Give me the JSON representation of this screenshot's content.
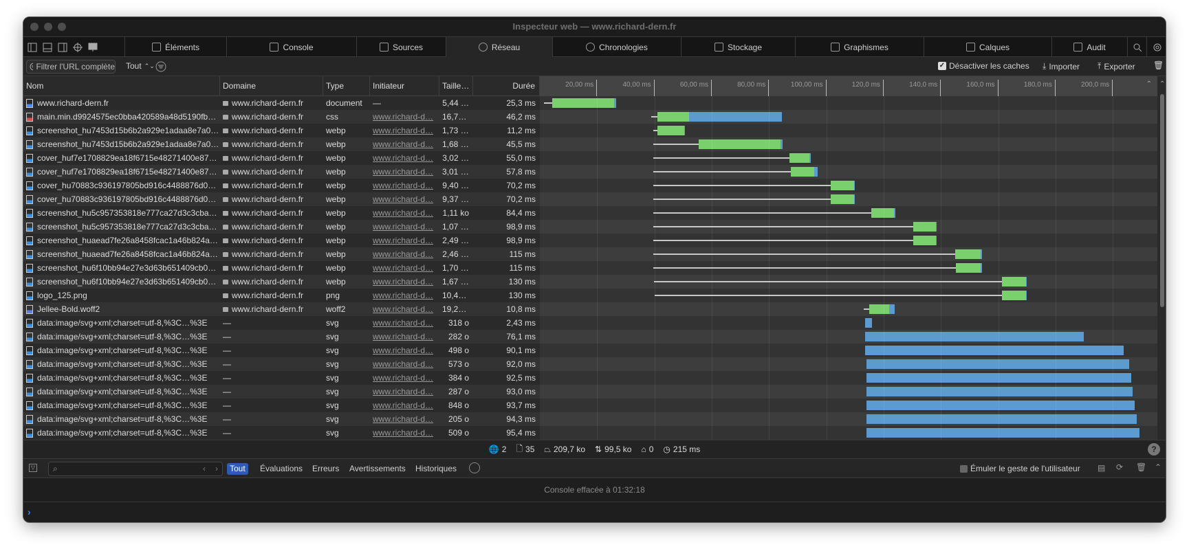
{
  "window": {
    "title": "Inspecteur web — www.richard-dern.fr"
  },
  "tabs": [
    {
      "label": "Éléments",
      "icon": "elements-icon"
    },
    {
      "label": "Console",
      "icon": "console-icon"
    },
    {
      "label": "Sources",
      "icon": "file-icon"
    },
    {
      "label": "Réseau",
      "icon": "network-icon",
      "selected": true
    },
    {
      "label": "Chronologies",
      "icon": "clock-icon"
    },
    {
      "label": "Stockage",
      "icon": "database-icon"
    },
    {
      "label": "Graphismes",
      "icon": "image-icon"
    },
    {
      "label": "Calques",
      "icon": "layers-icon"
    },
    {
      "label": "Audit",
      "icon": "audit-icon"
    }
  ],
  "filterbar": {
    "filter_placeholder": "Filtrer l'URL complète",
    "type_select": "Tout",
    "disable_cache_label": "Désactiver les caches",
    "disable_cache_checked": true,
    "import_label": "Importer",
    "export_label": "Exporter"
  },
  "columns": {
    "name": "Nom",
    "domain": "Domaine",
    "type": "Type",
    "initiator": "Initiateur",
    "size": "Taille…",
    "duration": "Durée"
  },
  "timeline_ticks": [
    "20,00 ms",
    "40,00 ms",
    "60,00 ms",
    "80,00 ms",
    "100,00 ms",
    "120,0 ms",
    "140,0 ms",
    "160,0 ms",
    "180,0 ms",
    "200,0 ms"
  ],
  "colors": {
    "latency": "#7ad06c",
    "download": "#5b9bd0",
    "accent": "#2f5bb5"
  },
  "rows": [
    {
      "name": "www.richard-dern.fr",
      "icon": "document",
      "domain": "www.richard-dern.fr",
      "type": "document",
      "initiator": "—",
      "size": "5,44 …",
      "duration": "25,3 ms",
      "timing": [
        1.4,
        4.3,
        25.9,
        26.6
      ]
    },
    {
      "name": "main.min.d9924575ec0bba420589a48d5190fbca1c…",
      "icon": "css",
      "domain": "www.richard-dern.fr",
      "type": "css",
      "initiator": "www.richard-d…",
      "size": "16,77…",
      "duration": "46,2 ms",
      "timing": [
        38.8,
        41.1,
        52.0,
        84.5
      ]
    },
    {
      "name": "screenshot_hu7453d15b6b2a929e1adaa8e7a06eb6…",
      "icon": "image",
      "domain": "www.richard-dern.fr",
      "type": "webp",
      "initiator": "www.richard-d…",
      "size": "1,73 ko",
      "duration": "11,2 ms",
      "timing": [
        39.6,
        41.1,
        50.3,
        50.7
      ]
    },
    {
      "name": "screenshot_hu7453d15b6b2a929e1adaa8e7a06eb6…",
      "icon": "image",
      "domain": "www.richard-dern.fr",
      "type": "webp",
      "initiator": "www.richard-d…",
      "size": "1,68 ko",
      "duration": "45,5 ms",
      "timing": [
        39.6,
        55.4,
        84.1,
        84.8
      ]
    },
    {
      "name": "cover_huf7e1708829ea18f6715e48271400e87a_21…",
      "icon": "image",
      "domain": "www.richard-dern.fr",
      "type": "webp",
      "initiator": "www.richard-d…",
      "size": "3,02 …",
      "duration": "55,0 ms",
      "timing": [
        39.6,
        87.2,
        94.2,
        94.6
      ]
    },
    {
      "name": "cover_huf7e1708829ea18f6715e48271400e87a_21…",
      "icon": "image",
      "domain": "www.richard-dern.fr",
      "type": "webp",
      "initiator": "www.richard-d…",
      "size": "3,01 ko",
      "duration": "57,8 ms",
      "timing": [
        39.6,
        87.6,
        95.7,
        96.9
      ]
    },
    {
      "name": "cover_hu70883c936197805bd916c4488876d0b0_…",
      "icon": "image",
      "domain": "www.richard-dern.fr",
      "type": "webp",
      "initiator": "www.richard-d…",
      "size": "9,40 …",
      "duration": "70,2 ms",
      "timing": [
        39.6,
        101.5,
        109.6,
        109.9
      ]
    },
    {
      "name": "cover_hu70883c936197805bd916c4488876d0b0_…",
      "icon": "image",
      "domain": "www.richard-dern.fr",
      "type": "webp",
      "initiator": "www.richard-d…",
      "size": "9,37 …",
      "duration": "70,2 ms",
      "timing": [
        39.6,
        101.5,
        109.6,
        109.9
      ]
    },
    {
      "name": "screenshot_hu5c957353818e777ca27d3c3cba003…",
      "icon": "image",
      "domain": "www.richard-dern.fr",
      "type": "webp",
      "initiator": "www.richard-d…",
      "size": "1,11 ko",
      "duration": "84,4 ms",
      "timing": [
        39.6,
        115.6,
        123.7,
        124.1
      ]
    },
    {
      "name": "screenshot_hu5c957353818e777ca27d3c3cba003…",
      "icon": "image",
      "domain": "www.richard-dern.fr",
      "type": "webp",
      "initiator": "www.richard-d…",
      "size": "1,07 ko",
      "duration": "98,9 ms",
      "timing": [
        39.6,
        130.3,
        138.2,
        138.6
      ]
    },
    {
      "name": "screenshot_huaead7fe26a8458fcac1a46b824a981…",
      "icon": "image",
      "domain": "www.richard-dern.fr",
      "type": "webp",
      "initiator": "www.richard-d…",
      "size": "2,49 …",
      "duration": "98,9 ms",
      "timing": [
        39.6,
        130.3,
        138.2,
        138.6
      ]
    },
    {
      "name": "screenshot_huaead7fe26a8458fcac1a46b824a981…",
      "icon": "image",
      "domain": "www.richard-dern.fr",
      "type": "webp",
      "initiator": "www.richard-d…",
      "size": "2,46 …",
      "duration": "115 ms",
      "timing": [
        39.6,
        144.9,
        153.9,
        154.3
      ]
    },
    {
      "name": "screenshot_hu6f10bb94e27e3d63b651409cb0725…",
      "icon": "image",
      "domain": "www.richard-dern.fr",
      "type": "webp",
      "initiator": "www.richard-d…",
      "size": "1,70 ko",
      "duration": "115 ms",
      "timing": [
        39.6,
        145.3,
        153.9,
        154.3
      ]
    },
    {
      "name": "screenshot_hu6f10bb94e27e3d63b651409cb0725…",
      "icon": "image",
      "domain": "www.richard-dern.fr",
      "type": "webp",
      "initiator": "www.richard-d…",
      "size": "1,67 ko",
      "duration": "130 ms",
      "timing": [
        39.9,
        161.3,
        169.6,
        170.0
      ]
    },
    {
      "name": "logo_125.png",
      "icon": "image",
      "domain": "www.richard-dern.fr",
      "type": "png",
      "initiator": "www.richard-d…",
      "size": "10,49…",
      "duration": "130 ms",
      "timing": [
        40.1,
        161.3,
        169.6,
        170.0
      ]
    },
    {
      "name": "Jellee-Bold.woff2",
      "icon": "font",
      "domain": "www.richard-dern.fr",
      "type": "woff2",
      "initiator": "www.richard-d…",
      "size": "19,26…",
      "duration": "10,8 ms",
      "timing": [
        113.1,
        115.0,
        121.9,
        123.8
      ]
    },
    {
      "name": "data:image/svg+xml;charset=utf-8,%3C…%3E",
      "icon": "image",
      "domain": "—",
      "type": "svg",
      "initiator": "www.richard-d…",
      "size": "318 o",
      "duration": "2,43 ms",
      "timing": [
        113.6,
        113.6,
        113.6,
        116.0
      ]
    },
    {
      "name": "data:image/svg+xml;charset=utf-8,%3C…%3E",
      "icon": "image",
      "domain": "—",
      "type": "svg",
      "initiator": "www.richard-d…",
      "size": "282 o",
      "duration": "76,1 ms",
      "timing": [
        113.6,
        113.6,
        113.6,
        189.8
      ]
    },
    {
      "name": "data:image/svg+xml;charset=utf-8,%3C…%3E",
      "icon": "image",
      "domain": "—",
      "type": "svg",
      "initiator": "www.richard-d…",
      "size": "498 o",
      "duration": "90,1 ms",
      "timing": [
        113.6,
        113.6,
        113.6,
        203.8
      ]
    },
    {
      "name": "data:image/svg+xml;charset=utf-8,%3C…%3E",
      "icon": "image",
      "domain": "—",
      "type": "svg",
      "initiator": "www.richard-d…",
      "size": "573 o",
      "duration": "92,0 ms",
      "timing": [
        113.9,
        113.9,
        113.9,
        205.7
      ]
    },
    {
      "name": "data:image/svg+xml;charset=utf-8,%3C…%3E",
      "icon": "image",
      "domain": "—",
      "type": "svg",
      "initiator": "www.richard-d…",
      "size": "384 o",
      "duration": "92,5 ms",
      "timing": [
        113.9,
        113.9,
        113.9,
        206.4
      ]
    },
    {
      "name": "data:image/svg+xml;charset=utf-8,%3C…%3E",
      "icon": "image",
      "domain": "—",
      "type": "svg",
      "initiator": "www.richard-d…",
      "size": "287 o",
      "duration": "93,0 ms",
      "timing": [
        113.9,
        113.9,
        113.9,
        207.0
      ]
    },
    {
      "name": "data:image/svg+xml;charset=utf-8,%3C…%3E",
      "icon": "image",
      "domain": "—",
      "type": "svg",
      "initiator": "www.richard-d…",
      "size": "848 o",
      "duration": "93,7 ms",
      "timing": [
        113.9,
        113.9,
        113.9,
        207.7
      ]
    },
    {
      "name": "data:image/svg+xml;charset=utf-8,%3C…%3E",
      "icon": "image",
      "domain": "—",
      "type": "svg",
      "initiator": "www.richard-d…",
      "size": "205 o",
      "duration": "94,3 ms",
      "timing": [
        113.9,
        113.9,
        113.9,
        208.4
      ]
    },
    {
      "name": "data:image/svg+xml;charset=utf-8,%3C…%3E",
      "icon": "image",
      "domain": "—",
      "type": "svg",
      "initiator": "www.richard-d…",
      "size": "509 o",
      "duration": "95,4 ms",
      "timing": [
        113.9,
        113.9,
        113.9,
        209.3
      ]
    }
  ],
  "status": {
    "domains": "2",
    "resources": "35",
    "transferred": "209,7 ko",
    "size": "99,5 ko",
    "redirects": "0",
    "time": "215 ms",
    "help": "?"
  },
  "console": {
    "tabs": [
      "Tout",
      "Évaluations",
      "Erreurs",
      "Avertissements",
      "Historiques"
    ],
    "emulate_label": "Émuler le geste de l'utilisateur",
    "message": "Console effacée à 01:32:18",
    "prompt": "›"
  }
}
